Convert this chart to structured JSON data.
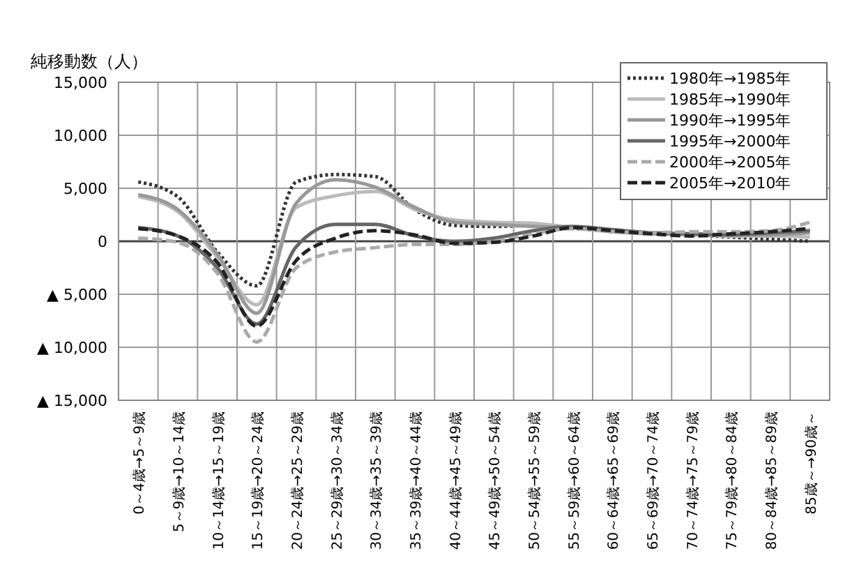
{
  "chart_data": {
    "type": "line",
    "ylabel": "純移動数（人）",
    "categories": [
      "0～4歳→5～9歳",
      "5～9歳→10～14歳",
      "10～14歳→15～19歳",
      "15～19歳→20～24歳",
      "20～24歳→25～29歳",
      "25～29歳→30～34歳",
      "30～34歳→35～39歳",
      "35～39歳→40～44歳",
      "40～44歳→45～49歳",
      "45～49歳→50～54歳",
      "50～54歳→55～59歳",
      "55～59歳→60～64歳",
      "60～64歳→65～69歳",
      "65～69歳→70～74歳",
      "70～74歳→75～79歳",
      "75～79歳→80～84歳",
      "80～84歳→85～89歳",
      "85歳～→90歳～"
    ],
    "series": [
      {
        "name": "1980年→1985年",
        "color": "#333333",
        "line_style": "dotted",
        "values": [
          5600,
          4200,
          -1000,
          -4200,
          5600,
          6300,
          6100,
          3000,
          1500,
          1400,
          1500,
          1200,
          1000,
          800,
          600,
          400,
          200,
          0
        ]
      },
      {
        "name": "1985年→1990年",
        "color": "#bbbbbb",
        "line_style": "solid",
        "values": [
          4200,
          2800,
          -1500,
          -6000,
          3200,
          4300,
          4700,
          3000,
          2000,
          1800,
          1700,
          1300,
          900,
          700,
          600,
          500,
          500,
          400
        ]
      },
      {
        "name": "1990年→1995年",
        "color": "#999999",
        "line_style": "solid",
        "values": [
          4400,
          3000,
          -1200,
          -6800,
          3600,
          5800,
          5100,
          3200,
          1800,
          1600,
          1400,
          1300,
          900,
          700,
          700,
          600,
          600,
          800
        ]
      },
      {
        "name": "1995年→2000年",
        "color": "#666666",
        "line_style": "solid",
        "values": [
          1300,
          500,
          -2500,
          -7800,
          -500,
          1600,
          1600,
          500,
          0,
          300,
          1000,
          1400,
          1100,
          800,
          700,
          600,
          800,
          1000
        ]
      },
      {
        "name": "2000年→2005年",
        "color": "#aaaaaa",
        "line_style": "dashed",
        "values": [
          300,
          -100,
          -3000,
          -9500,
          -2500,
          -1000,
          -600,
          -300,
          -300,
          0,
          700,
          1200,
          900,
          800,
          900,
          900,
          1000,
          1800
        ]
      },
      {
        "name": "2005年→2010年",
        "color": "#222222",
        "line_style": "dashed",
        "values": [
          1200,
          500,
          -2000,
          -8000,
          -1800,
          300,
          1000,
          600,
          -200,
          -100,
          500,
          1300,
          1000,
          700,
          500,
          700,
          900,
          1200
        ]
      }
    ],
    "ylim": [
      -15000,
      15000
    ],
    "yticks": [
      {
        "value": -15000,
        "label": "▲ 15,000"
      },
      {
        "value": -10000,
        "label": "▲ 10,000"
      },
      {
        "value": -5000,
        "label": "▲ 5,000"
      },
      0,
      {
        "value": 5000,
        "label": "5,000"
      },
      {
        "value": 10000,
        "label": "10,000"
      },
      {
        "value": 15000,
        "label": "15,000"
      }
    ],
    "grid": true,
    "legend": "top right"
  }
}
